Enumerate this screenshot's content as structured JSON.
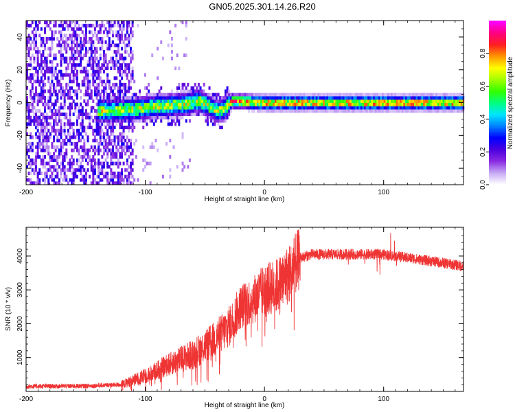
{
  "title": "GN05.2025.301.14.26.R20",
  "chart_data": [
    {
      "type": "heatmap",
      "title": "GN05.2025.301.14.26.R20",
      "xlabel": "Height of straight line (km)",
      "ylabel": "Frequency (Hz)",
      "xlim": [
        -200,
        167
      ],
      "ylim": [
        -50,
        50
      ],
      "xticks": [
        -200,
        -100,
        0,
        100
      ],
      "yticks": [
        -40,
        -20,
        0,
        20,
        40
      ],
      "colorbar": {
        "label": "Normalized spectral amplitude",
        "ticks": [
          0.0,
          0.2,
          0.4,
          0.6,
          0.8
        ],
        "range": [
          0,
          1
        ],
        "colormap": [
          "#ffffff",
          "#c6a8f5",
          "#8a2be2",
          "#4b00e0",
          "#0000ff",
          "#0080ff",
          "#00e5ff",
          "#00ff80",
          "#33ff00",
          "#a0ff00",
          "#ffff00",
          "#ff9900",
          "#ff2020",
          "#ff0080",
          "#ff00ff"
        ]
      },
      "features": {
        "noise_region_x": [
          -200,
          -110
        ],
        "ridge_x": [
          -140,
          167
        ],
        "ridge_center_freq": [
          {
            "x": -140,
            "y": -5
          },
          {
            "x": -110,
            "y": -4
          },
          {
            "x": -90,
            "y": -2
          },
          {
            "x": -70,
            "y": -1
          },
          {
            "x": -55,
            "y": 1
          },
          {
            "x": -40,
            "y": -5
          },
          {
            "x": -35,
            "y": -4
          },
          {
            "x": -28,
            "y": 1
          },
          {
            "x": 0,
            "y": 0
          },
          {
            "x": 167,
            "y": 0
          }
        ]
      }
    },
    {
      "type": "line",
      "xlabel": "Height of straight line (km)",
      "ylabel": "SNR (10 * v/v)",
      "xlim": [
        -200,
        167
      ],
      "ylim": [
        0,
        4850
      ],
      "xticks": [
        -200,
        -100,
        0,
        100
      ],
      "yticks": [
        1000,
        2000,
        3000,
        4000
      ],
      "color": "#f03030",
      "series": [
        {
          "name": "SNR",
          "envelope": [
            {
              "x": -200,
              "y": 150
            },
            {
              "x": -150,
              "y": 160
            },
            {
              "x": -120,
              "y": 200
            },
            {
              "x": -100,
              "y": 450
            },
            {
              "x": -80,
              "y": 800
            },
            {
              "x": -60,
              "y": 1100
            },
            {
              "x": -45,
              "y": 1450
            },
            {
              "x": -30,
              "y": 1900
            },
            {
              "x": -20,
              "y": 2500
            },
            {
              "x": -10,
              "y": 2700
            },
            {
              "x": 0,
              "y": 3000
            },
            {
              "x": 10,
              "y": 3100
            },
            {
              "x": 20,
              "y": 3450
            },
            {
              "x": 30,
              "y": 3950
            },
            {
              "x": 40,
              "y": 4050
            },
            {
              "x": 60,
              "y": 4050
            },
            {
              "x": 80,
              "y": 4050
            },
            {
              "x": 100,
              "y": 4050
            },
            {
              "x": 120,
              "y": 3950
            },
            {
              "x": 140,
              "y": 3850
            },
            {
              "x": 167,
              "y": 3700
            }
          ]
        }
      ]
    }
  ]
}
